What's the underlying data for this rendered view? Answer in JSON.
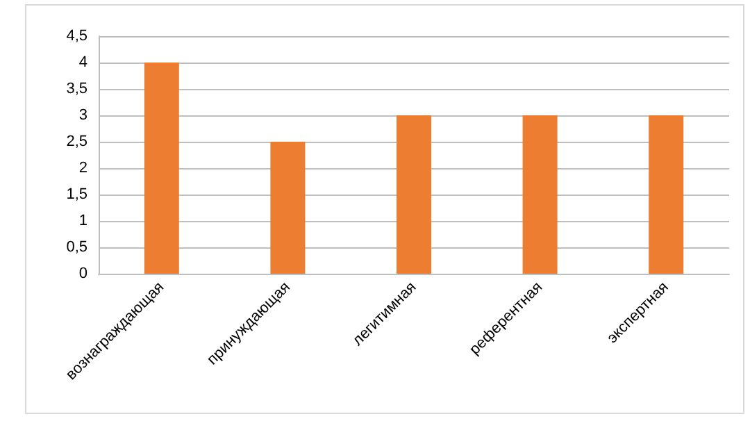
{
  "chart_data": {
    "type": "bar",
    "categories": [
      "вознаграждающая",
      "принуждающая",
      "легитимная",
      "референтная",
      "экспертная"
    ],
    "values": [
      4,
      2.5,
      3,
      3,
      3
    ],
    "color": "#ed7d31",
    "ylim": [
      0,
      4.5
    ],
    "yticks": [
      0,
      {
        "value": 0.5,
        "label": "0,5"
      },
      1,
      {
        "value": 1.5,
        "label": "1,5"
      },
      2,
      {
        "value": 2.5,
        "label": "2,5"
      },
      3,
      {
        "value": 3.5,
        "label": "3,5"
      },
      4,
      {
        "value": 4.5,
        "label": "4,5"
      }
    ],
    "grid": "y"
  }
}
